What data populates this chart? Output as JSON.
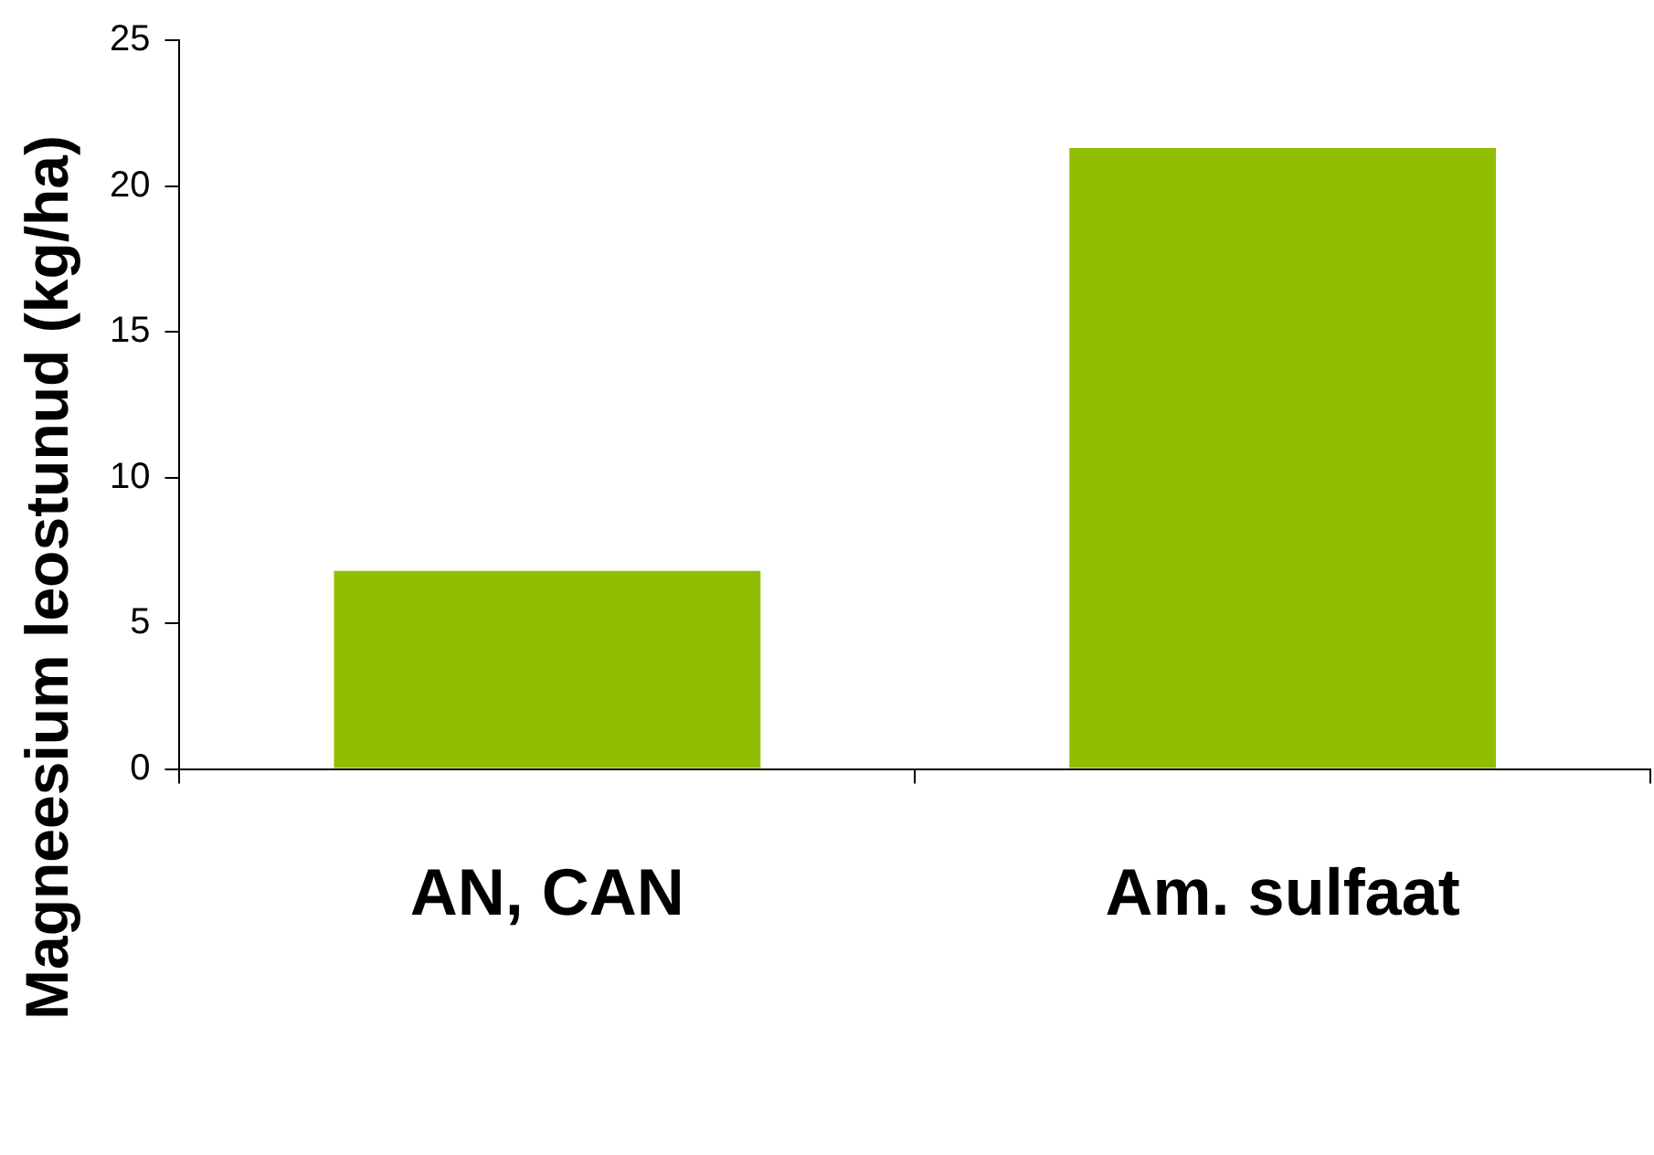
{
  "chart_data": {
    "type": "bar",
    "ylabel": "Magneesium leostunud (kg/ha)",
    "categories": [
      "AN, CAN",
      "Am. sulfaat"
    ],
    "values": [
      6.8,
      21.3
    ],
    "color": "#8fbf00",
    "ylim": [
      0,
      25
    ],
    "yticks": [
      0,
      5,
      10,
      15,
      20,
      25
    ],
    "grid": false,
    "legend": false
  }
}
